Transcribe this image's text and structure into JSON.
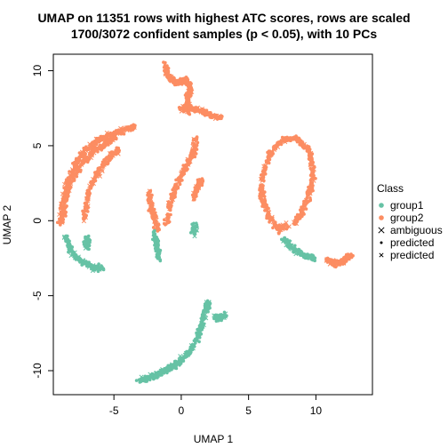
{
  "colors": {
    "group1": "#66c2a5",
    "group2": "#fc8d62",
    "axis": "#000000",
    "ink": "#000000",
    "background": "#ffffff"
  },
  "chart_data": {
    "type": "scatter",
    "title": "UMAP on 11351 rows with highest ATC scores, rows are scaled",
    "subtitle": "1700/3072 confident samples (p < 0.05), with 10 PCs",
    "xlabel": "UMAP 1",
    "ylabel": "UMAP 2",
    "xlim": [
      -9.5,
      14.2
    ],
    "ylim": [
      -11.6,
      11.1
    ],
    "xticks": [
      -5,
      0,
      5,
      10
    ],
    "yticks": [
      -10,
      -5,
      0,
      5,
      10
    ],
    "grid": false,
    "legend": {
      "position": "right",
      "title": "Class",
      "entries": [
        {
          "label": "group1",
          "marker": "dot",
          "color": "#66c2a5"
        },
        {
          "label": "group2",
          "marker": "dot",
          "color": "#fc8d62"
        },
        {
          "label": "ambiguous",
          "marker": "x",
          "color": "#000000"
        },
        {
          "label": "predicted",
          "marker": "small-dot",
          "color": "#000000"
        },
        {
          "label": "predicted",
          "marker": "small-x",
          "color": "#000000"
        }
      ]
    },
    "series": [
      {
        "name": "group2",
        "color": "#fc8d62",
        "segments": [
          [
            [
              -9.0,
              -0.4
            ],
            [
              -8.8,
              1.2
            ],
            [
              -8.4,
              2.6
            ],
            [
              -7.8,
              3.9
            ],
            [
              -7.0,
              4.8
            ],
            [
              -6.0,
              5.4
            ],
            [
              -5.0,
              5.8
            ],
            [
              -4.2,
              6.1
            ],
            [
              -3.5,
              6.2
            ]
          ],
          [
            [
              -8.8,
              0.2
            ],
            [
              -8.6,
              1.5
            ],
            [
              -8.1,
              2.8
            ],
            [
              -7.4,
              3.8
            ],
            [
              -6.5,
              4.6
            ],
            [
              -5.7,
              5.1
            ],
            [
              -4.9,
              5.5
            ]
          ],
          [
            [
              -7.2,
              0.1
            ],
            [
              -7.0,
              1.4
            ],
            [
              -6.6,
              2.6
            ],
            [
              -6.0,
              3.5
            ],
            [
              -5.3,
              4.3
            ],
            [
              -4.6,
              4.7
            ]
          ],
          [
            [
              -1.8,
              -0.6
            ],
            [
              -2.0,
              0.3
            ],
            [
              -2.3,
              1.2
            ],
            [
              -2.4,
              2.0
            ]
          ],
          [
            [
              -1.1,
              -0.3
            ],
            [
              -0.8,
              1.2
            ],
            [
              -0.3,
              2.5
            ],
            [
              0.3,
              3.5
            ],
            [
              0.9,
              4.5
            ],
            [
              1.1,
              5.5
            ]
          ],
          [
            [
              0.9,
              1.5
            ],
            [
              1.2,
              2.3
            ],
            [
              1.6,
              2.7
            ]
          ],
          [
            [
              -1.2,
              10.4
            ],
            [
              -1.0,
              9.6
            ],
            [
              -0.4,
              9.2
            ],
            [
              0.3,
              9.4
            ],
            [
              0.7,
              8.8
            ],
            [
              0.4,
              8.1
            ],
            [
              0.6,
              7.5
            ],
            [
              1.3,
              7.4
            ],
            [
              2.0,
              7.1
            ],
            [
              3.0,
              6.8
            ]
          ],
          [
            [
              0.0,
              7.6
            ],
            [
              0.5,
              7.3
            ]
          ],
          [
            [
              7.9,
              -0.3
            ],
            [
              7.2,
              -0.6
            ],
            [
              6.5,
              0.3
            ],
            [
              6.0,
              1.5
            ],
            [
              6.0,
              3.0
            ],
            [
              6.6,
              4.5
            ],
            [
              7.5,
              5.4
            ],
            [
              8.5,
              5.5
            ],
            [
              9.4,
              4.8
            ],
            [
              9.8,
              3.5
            ],
            [
              9.6,
              2.0
            ],
            [
              9.0,
              0.6
            ],
            [
              8.4,
              -0.2
            ]
          ],
          [
            [
              10.8,
              -2.6
            ],
            [
              11.5,
              -2.9
            ],
            [
              12.2,
              -2.6
            ],
            [
              12.6,
              -2.3
            ]
          ]
        ]
      },
      {
        "name": "group1",
        "color": "#66c2a5",
        "segments": [
          [
            [
              -8.6,
              -1.0
            ],
            [
              -8.2,
              -2.0
            ],
            [
              -7.5,
              -2.7
            ],
            [
              -6.6,
              -3.1
            ],
            [
              -5.8,
              -3.2
            ]
          ],
          [
            [
              -7.0,
              -1.0
            ],
            [
              -7.0,
              -1.8
            ]
          ],
          [
            [
              -2.0,
              -0.8
            ],
            [
              -1.8,
              -1.8
            ],
            [
              -1.7,
              -2.6
            ]
          ],
          [
            [
              1.0,
              -0.2
            ],
            [
              0.9,
              -0.9
            ]
          ],
          [
            [
              7.6,
              -1.2
            ],
            [
              8.3,
              -1.9
            ],
            [
              9.2,
              -2.3
            ],
            [
              9.9,
              -2.5
            ]
          ],
          [
            [
              -3.2,
              -10.7
            ],
            [
              -2.2,
              -10.4
            ],
            [
              -1.0,
              -9.9
            ],
            [
              0.2,
              -9.1
            ],
            [
              1.1,
              -8.1
            ],
            [
              1.5,
              -7.0
            ],
            [
              1.8,
              -6.0
            ],
            [
              2.0,
              -5.4
            ]
          ],
          [
            [
              -2.4,
              -10.6
            ],
            [
              -1.4,
              -10.1
            ],
            [
              -0.3,
              -9.6
            ],
            [
              0.8,
              -8.6
            ]
          ],
          [
            [
              2.5,
              -6.4
            ],
            [
              2.9,
              -6.5
            ],
            [
              3.2,
              -6.3
            ]
          ]
        ]
      }
    ]
  }
}
